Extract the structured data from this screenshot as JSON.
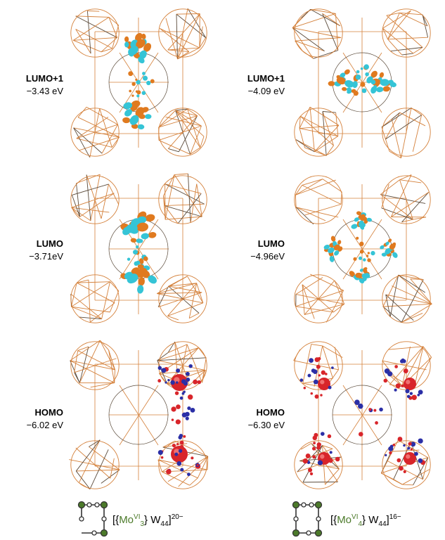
{
  "colors": {
    "framework": "#d4803a",
    "framework_dark": "#5a4a3a",
    "lobe_orange": "#e07a1f",
    "lobe_cyan": "#35c4d6",
    "lobe_red": "#d8252a",
    "lobe_blue": "#2b2fa6",
    "mo_green": "#4c7a2a"
  },
  "left": {
    "orbitals": [
      {
        "name": "LUMO+1",
        "energy": "−3.43 eV"
      },
      {
        "name": "LUMO",
        "energy": "−3.71eV"
      },
      {
        "name": "HOMO",
        "energy": "−6.02 eV"
      }
    ],
    "formula": {
      "open": "[{",
      "metal": "Mo",
      "ox": "VI",
      "count": "3",
      "close": "} W",
      "w_count": "44",
      "end": "]",
      "charge": "20−"
    }
  },
  "right": {
    "orbitals": [
      {
        "name": "LUMO+1",
        "energy": "−4.09 eV"
      },
      {
        "name": "LUMO",
        "energy": "−4.96eV"
      },
      {
        "name": "HOMO",
        "energy": "−6.30 eV"
      }
    ],
    "formula": {
      "open": "[{",
      "metal": "Mo",
      "ox": "VI",
      "count": "4",
      "close": "} W",
      "w_count": "44",
      "end": "]",
      "charge": "16−"
    }
  }
}
